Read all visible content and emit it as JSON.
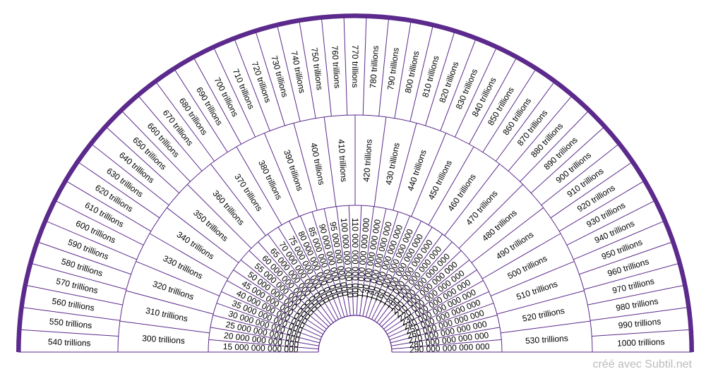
{
  "footer": {
    "credit": "créé avec Subtil.net"
  },
  "colors": {
    "accent": "#5b2a8c",
    "line": "#5b2a8c",
    "text": "#000000",
    "credit": "#bbbbbb"
  },
  "rings": [
    {
      "name": "inner",
      "labels": [
        "15 000 000 000 000",
        "20 000 000 000 000",
        "25 000 000 000 000",
        "30 000 000 000 000",
        "35 000 000 000 000",
        "40 000 000 000 000",
        "45 000 000 000 000",
        "50 000 000 000 000",
        "55 000 000 000 000",
        "60 000 000 000 000",
        "65 000 000 000 000",
        "70 000 000 000 000",
        "75 000 000 000 000",
        "80 000 000 000 000",
        "85 000 000 000 000",
        "90 000 000 000 000",
        "95 000 000 000 000",
        "100 000 000 000 000",
        "110 000 000 000 000",
        "120 000 000 000 000",
        "130 000 000 000 000",
        "140 000 000 000 000",
        "150 000 000 000 000",
        "160 000 000 000 000",
        "170 000 000 000 000",
        "180 000 000 000 000",
        "190 000 000 000 000",
        "200 000 000 000 000",
        "210 000 000 000 000",
        "220 000 000 000 000",
        "230 000 000 000 000",
        "240 000 000 000 000",
        "250 000 000 000 000",
        "260 000 000 000 000",
        "270 000 000 000 000",
        "280 000 000 000 000",
        "290 000 000 000 000"
      ]
    },
    {
      "name": "middle",
      "labels": [
        "300 trillions",
        "310 trillions",
        "320 trillions",
        "330 trillions",
        "340 trillions",
        "350 trillions",
        "360 trillions",
        "370 trillions",
        "380 trillions",
        "390 trillions",
        "400 trillions",
        "410 trillions",
        "420 trillions",
        "430 trillions",
        "440 trillions",
        "450 trillions",
        "460 trillions",
        "470 trillions",
        "480 trillions",
        "490 trillions",
        "500 trillions",
        "510 trillions",
        "520 trillions",
        "530 trillions"
      ]
    },
    {
      "name": "outer",
      "labels": [
        "540 trillions",
        "550 trillions",
        "560 trillions",
        "570 trillions",
        "580 trillions",
        "590 trillions",
        "600 trillions",
        "610 trillions",
        "620 trillions",
        "630 trillions",
        "640 trillions",
        "650 trillions",
        "660 trillions",
        "670 trillions",
        "680 trillions",
        "690 trillions",
        "700 trillions",
        "710 trillions",
        "720 trillions",
        "730 trillions",
        "740 trillions",
        "750 trillions",
        "760 trillions",
        "770 trillions",
        "780 trillions",
        "790 trillions",
        "800 trillions",
        "810 trillions",
        "820 trillions",
        "830 trillions",
        "840 trillions",
        "850 trillions",
        "860 trillions",
        "870 trillions",
        "880 trillions",
        "890 trillions",
        "900 trillions",
        "910 trillions",
        "920 trillions",
        "930 trillions",
        "940 trillions",
        "950 trillions",
        "960 trillions",
        "970 trillions",
        "980 trillions",
        "990 trillions",
        "1000 trillions"
      ]
    }
  ]
}
